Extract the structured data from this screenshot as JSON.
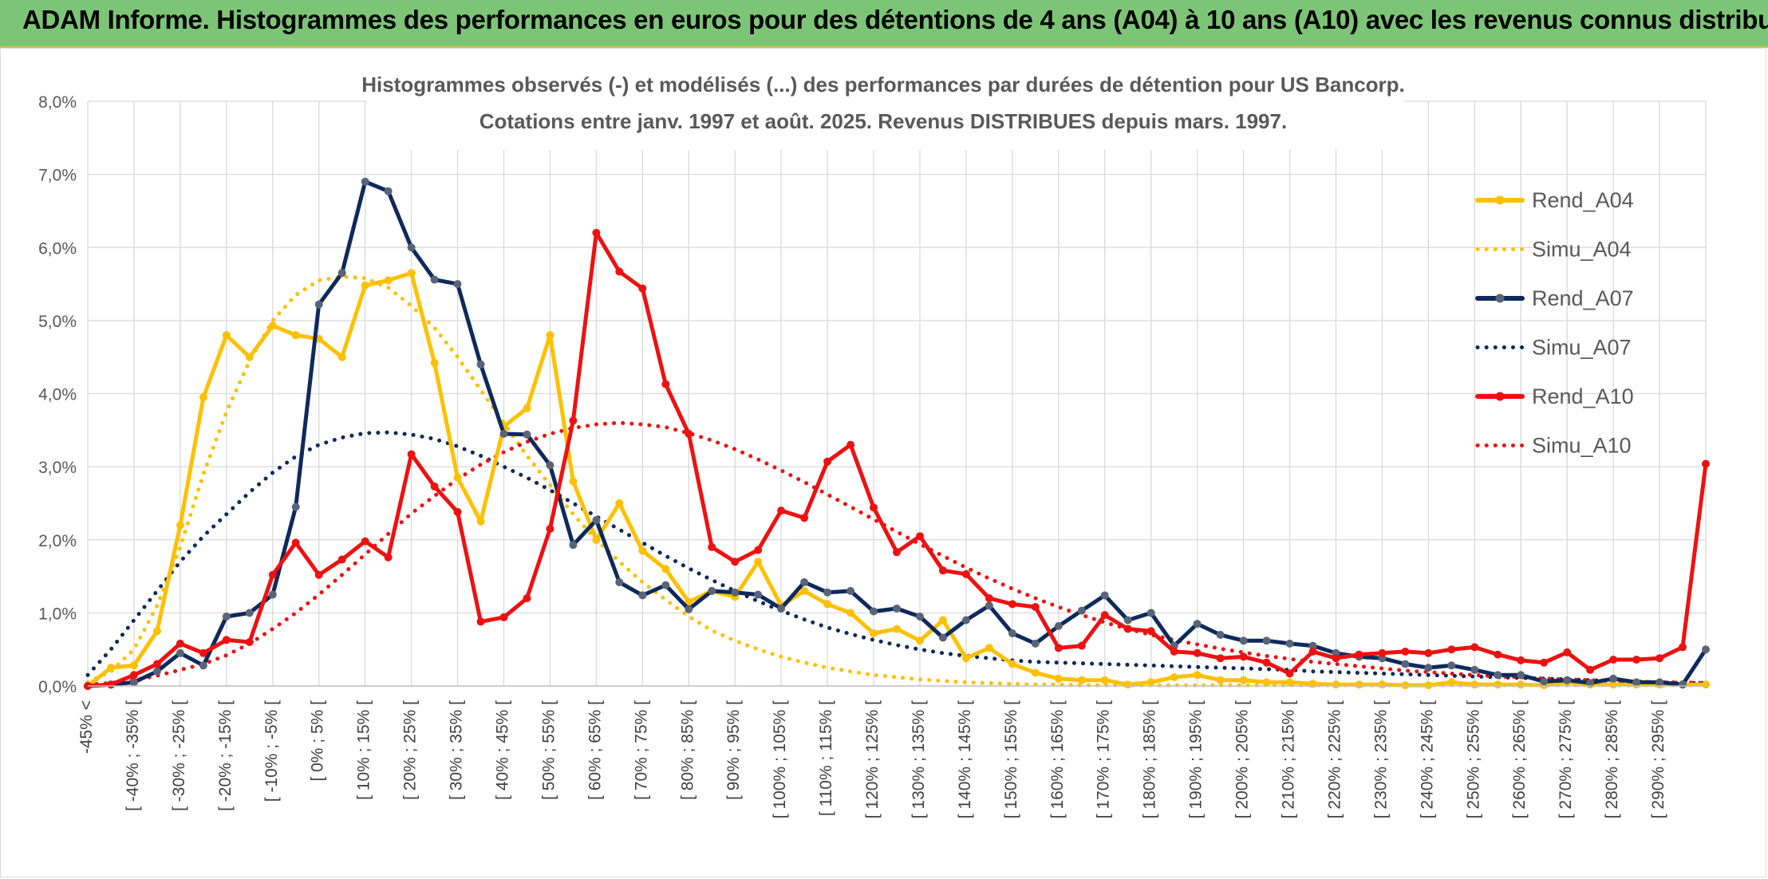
{
  "header": {
    "title": "ADAM Informe. Histogrammes des performances en euros pour des détentions de 4 ans (A04) à 10 ans (A10) avec les revenus connus distribués"
  },
  "colors": {
    "header_bg": "#7cc576",
    "A04": "#ffc000",
    "A07": "#0e2a5c",
    "A10": "#ee1111",
    "grid": "#d9d9d9",
    "marker_A07": "#5a6478"
  },
  "chart_data": {
    "type": "line",
    "title": "Histogrammes observés (-) et modélisés (...) des performances par durées de détention pour US Bancorp.",
    "subtitle": "Cotations entre janv. 1997 et août. 2025. Revenus DISTRIBUES depuis mars. 1997.",
    "xlabel": "",
    "ylabel": "",
    "ylim": [
      0,
      8
    ],
    "y_ticks": [
      "0,0%",
      "1,0%",
      "2,0%",
      "3,0%",
      "4,0%",
      "5,0%",
      "6,0%",
      "7,0%",
      "8,0%"
    ],
    "grid": "vertical and horizontal",
    "legend_position": "right",
    "x_labels": [
      "-45% <",
      "[ -40% ; -35% [",
      "[ -30% ; -25% [",
      "[ -20% ; -15% [",
      "[ -10% ; -5% [",
      "[ 0% ; 5% [",
      "[ 10% ; 15% [",
      "[ 20% ; 25% [",
      "[ 30% ; 35% [",
      "[ 40% ; 45% [",
      "[ 50% ; 55% [",
      "[ 60% ; 65% [",
      "[ 70% ; 75% [",
      "[ 80% ; 85% [",
      "[ 90% ; 95% [",
      "[ 100% ; 105% [",
      "[ 110% ; 115% [",
      "[ 120% ; 125% [",
      "[ 130% ; 135% [",
      "[ 140% ; 145% [",
      "[ 150% ; 155% [",
      "[ 160% ; 165% [",
      "[ 170% ; 175% [",
      "[ 180% ; 185% [",
      "[ 190% ; 195% [",
      "[ 200% ; 205% [",
      "[ 210% ; 215% [",
      "[ 220% ; 225% [",
      "[ 230% ; 235% [",
      "[ 240% ; 245% [",
      "[ 250% ; 255% [",
      "[ 260% ; 265% [",
      "[ 270% ; 275% [",
      "[ 280% ; 285% [",
      "[ 290% ; 295% ["
    ],
    "series": [
      {
        "name": "Rend_A04",
        "style": "solid",
        "color": "#ffc000",
        "values": [
          0.0,
          0.25,
          0.28,
          0.75,
          2.2,
          3.95,
          4.8,
          4.5,
          4.93,
          4.8,
          4.75,
          4.5,
          5.48,
          5.55,
          5.65,
          4.42,
          2.85,
          2.25,
          3.55,
          3.8,
          4.8,
          2.8,
          2.0,
          2.5,
          1.85,
          1.6,
          1.15,
          1.3,
          1.22,
          1.7,
          1.1,
          1.3,
          1.12,
          1.0,
          0.72,
          0.78,
          0.62,
          0.9,
          0.38,
          0.52,
          0.3,
          0.18,
          0.1,
          0.08,
          0.08,
          0.02,
          0.05,
          0.12,
          0.15,
          0.08,
          0.08,
          0.05,
          0.05,
          0.03,
          0.02,
          0.02,
          0.02,
          0.01,
          0.01,
          0.05,
          0.02,
          0.02,
          0.02,
          0.01,
          0.05,
          0.02,
          0.02,
          0.02,
          0.02,
          0.02,
          0.02
        ]
      },
      {
        "name": "Simu_A04",
        "style": "dotted",
        "color": "#ffc000",
        "values": [
          0.05,
          0.2,
          0.5,
          1.1,
          1.9,
          2.9,
          3.75,
          4.45,
          5.0,
          5.35,
          5.55,
          5.6,
          5.58,
          5.45,
          5.2,
          4.9,
          4.5,
          4.05,
          3.6,
          3.15,
          2.75,
          2.35,
          2.0,
          1.7,
          1.42,
          1.18,
          0.95,
          0.76,
          0.62,
          0.5,
          0.4,
          0.32,
          0.25,
          0.2,
          0.15,
          0.12,
          0.09,
          0.07,
          0.05,
          0.04,
          0.03,
          0.02,
          0.02,
          0.01,
          0.01,
          0.01,
          0.01,
          0.01,
          0.01,
          0.01,
          0.01,
          0.01,
          0.01,
          0.01,
          0.01,
          0.01,
          0.01,
          0.01,
          0.01,
          0.01,
          0.01,
          0.01,
          0.01,
          0.01,
          0.01,
          0.01,
          0.01,
          0.01,
          0.01,
          0.01,
          0.01
        ]
      },
      {
        "name": "Rend_A07",
        "style": "solid",
        "color": "#0e2a5c",
        "values": [
          0.0,
          0.02,
          0.05,
          0.2,
          0.45,
          0.28,
          0.95,
          1.0,
          1.25,
          2.45,
          5.22,
          5.65,
          6.9,
          6.77,
          6.0,
          5.56,
          5.5,
          4.4,
          3.45,
          3.44,
          3.02,
          1.93,
          2.27,
          1.42,
          1.24,
          1.38,
          1.05,
          1.3,
          1.28,
          1.25,
          1.06,
          1.42,
          1.28,
          1.3,
          1.02,
          1.06,
          0.95,
          0.66,
          0.9,
          1.1,
          0.72,
          0.58,
          0.82,
          1.03,
          1.24,
          0.9,
          1.0,
          0.55,
          0.85,
          0.7,
          0.62,
          0.62,
          0.58,
          0.55,
          0.45,
          0.4,
          0.38,
          0.3,
          0.25,
          0.28,
          0.22,
          0.15,
          0.15,
          0.06,
          0.08,
          0.04,
          0.1,
          0.05,
          0.05,
          0.02,
          0.5
        ]
      },
      {
        "name": "Simu_A07",
        "style": "dotted",
        "color": "#0e2a5c",
        "values": [
          0.15,
          0.5,
          0.9,
          1.3,
          1.7,
          2.05,
          2.35,
          2.65,
          2.92,
          3.14,
          3.3,
          3.4,
          3.46,
          3.47,
          3.44,
          3.38,
          3.28,
          3.15,
          3.0,
          2.85,
          2.68,
          2.5,
          2.32,
          2.14,
          1.96,
          1.78,
          1.61,
          1.45,
          1.3,
          1.16,
          1.03,
          0.91,
          0.8,
          0.71,
          0.63,
          0.56,
          0.5,
          0.45,
          0.41,
          0.38,
          0.35,
          0.33,
          0.32,
          0.31,
          0.3,
          0.29,
          0.28,
          0.27,
          0.26,
          0.25,
          0.24,
          0.23,
          0.22,
          0.2,
          0.19,
          0.18,
          0.17,
          0.16,
          0.15,
          0.14,
          0.13,
          0.12,
          0.11,
          0.1,
          0.09,
          0.08,
          0.07,
          0.06,
          0.05,
          0.04,
          0.04
        ]
      },
      {
        "name": "Rend_A10",
        "style": "solid",
        "color": "#ee1111",
        "values": [
          0.0,
          0.02,
          0.15,
          0.3,
          0.58,
          0.45,
          0.63,
          0.6,
          1.52,
          1.96,
          1.52,
          1.73,
          1.98,
          1.76,
          3.17,
          2.73,
          2.38,
          0.88,
          0.94,
          1.2,
          2.15,
          3.63,
          6.2,
          5.67,
          5.44,
          4.13,
          3.45,
          1.9,
          1.7,
          1.86,
          2.4,
          2.3,
          3.07,
          3.3,
          2.44,
          1.83,
          2.05,
          1.58,
          1.53,
          1.2,
          1.12,
          1.08,
          0.52,
          0.55,
          0.97,
          0.78,
          0.75,
          0.47,
          0.45,
          0.38,
          0.4,
          0.32,
          0.17,
          0.47,
          0.38,
          0.43,
          0.45,
          0.47,
          0.45,
          0.5,
          0.53,
          0.43,
          0.35,
          0.32,
          0.46,
          0.22,
          0.36,
          0.36,
          0.38,
          0.53,
          3.04
        ]
      },
      {
        "name": "Simu_A10",
        "style": "dotted",
        "color": "#ee1111",
        "values": [
          0.02,
          0.04,
          0.08,
          0.14,
          0.22,
          0.3,
          0.42,
          0.58,
          0.78,
          1.0,
          1.25,
          1.52,
          1.8,
          2.08,
          2.36,
          2.6,
          2.83,
          3.03,
          3.2,
          3.34,
          3.45,
          3.53,
          3.58,
          3.6,
          3.58,
          3.54,
          3.46,
          3.36,
          3.24,
          3.1,
          2.95,
          2.79,
          2.62,
          2.45,
          2.28,
          2.11,
          1.94,
          1.78,
          1.62,
          1.47,
          1.33,
          1.2,
          1.08,
          0.97,
          0.87,
          0.78,
          0.7,
          0.63,
          0.57,
          0.51,
          0.46,
          0.41,
          0.37,
          0.33,
          0.3,
          0.27,
          0.24,
          0.21,
          0.19,
          0.17,
          0.15,
          0.13,
          0.12,
          0.1,
          0.09,
          0.08,
          0.07,
          0.06,
          0.05,
          0.05,
          0.04
        ]
      }
    ]
  }
}
